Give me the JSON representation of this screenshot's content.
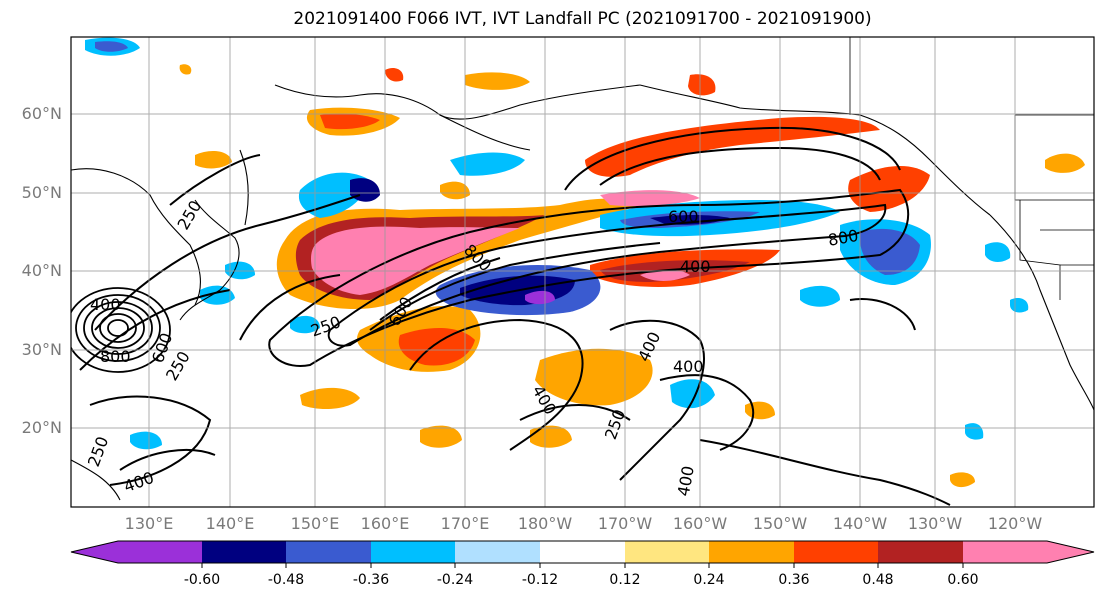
{
  "title": "2021091400 F066 IVT, IVT Landfall PC (2021091700 - 2021091900)",
  "lat_labels": [
    "60°N",
    "50°N",
    "40°N",
    "30°N",
    "20°N"
  ],
  "lon_labels": [
    "130°E",
    "140°E",
    "150°E",
    "160°E",
    "170°E",
    "180°W",
    "170°W",
    "160°W",
    "150°W",
    "140°W",
    "130°W",
    "120°W"
  ],
  "colorbar": {
    "ticks": [
      "-0.60",
      "-0.48",
      "-0.36",
      "-0.24",
      "-0.12",
      "0.12",
      "0.24",
      "0.36",
      "0.48",
      "0.60"
    ],
    "colors": [
      "#9b30d9",
      "#000080",
      "#3a5bd0",
      "#00bfff",
      "#b0e0ff",
      "#ffffff",
      "#ffe680",
      "#ffa500",
      "#ff4000",
      "#b22222",
      "#ff80b0"
    ]
  },
  "contour_labels": [
    "250",
    "250",
    "250",
    "600",
    "800",
    "400",
    "800",
    "600",
    "600",
    "800",
    "400",
    "400",
    "400",
    "400",
    "400",
    "250",
    "250",
    "400"
  ]
}
